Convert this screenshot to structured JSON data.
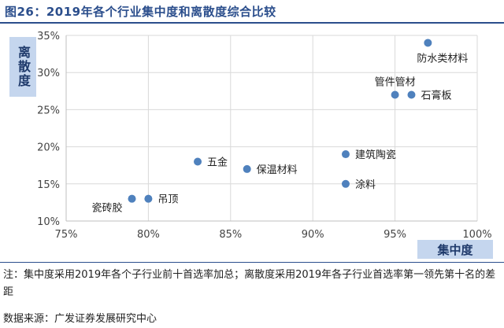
{
  "figure_title": "图26：2019年各个行业集中度和离散度综合比较",
  "ylabel": "离散度",
  "xlabel": "集中度",
  "note": "注：集中度采用2019年各个子行业前十首选率加总；离散度采用2019年各子行业首选率第一领先第十名的差距",
  "source": "数据来源：广发证券发展研究中心",
  "colors": {
    "accent": "#2b4e8c",
    "point": "#4f81bd",
    "label_bg": "#c5d6ee"
  },
  "chart_data": {
    "type": "scatter",
    "title": "",
    "xlabel": "集中度",
    "ylabel": "离散度",
    "xlim": [
      0.75,
      1.0
    ],
    "ylim": [
      0.1,
      0.35
    ],
    "x_ticks": [
      0.75,
      0.8,
      0.85,
      0.9,
      0.95,
      1.0
    ],
    "x_tick_labels": [
      "75%",
      "80%",
      "85%",
      "90%",
      "95%",
      "100%"
    ],
    "y_ticks": [
      0.1,
      0.15,
      0.2,
      0.25,
      0.3,
      0.35
    ],
    "y_tick_labels": [
      "10%",
      "15%",
      "20%",
      "25%",
      "30%",
      "35%"
    ],
    "grid": true,
    "legend": "none",
    "points": [
      {
        "label": "防水类材料",
        "x": 0.97,
        "y": 0.34,
        "label_pos": "below-right"
      },
      {
        "label": "管件管材",
        "x": 0.95,
        "y": 0.27,
        "label_pos": "above"
      },
      {
        "label": "石膏板",
        "x": 0.96,
        "y": 0.27,
        "label_pos": "right"
      },
      {
        "label": "建筑陶瓷",
        "x": 0.92,
        "y": 0.19,
        "label_pos": "right"
      },
      {
        "label": "涂料",
        "x": 0.92,
        "y": 0.15,
        "label_pos": "right"
      },
      {
        "label": "五金",
        "x": 0.83,
        "y": 0.18,
        "label_pos": "right"
      },
      {
        "label": "保温材料",
        "x": 0.86,
        "y": 0.17,
        "label_pos": "right"
      },
      {
        "label": "吊顶",
        "x": 0.8,
        "y": 0.13,
        "label_pos": "right"
      },
      {
        "label": "瓷砖胶",
        "x": 0.79,
        "y": 0.13,
        "label_pos": "below-left"
      }
    ]
  }
}
